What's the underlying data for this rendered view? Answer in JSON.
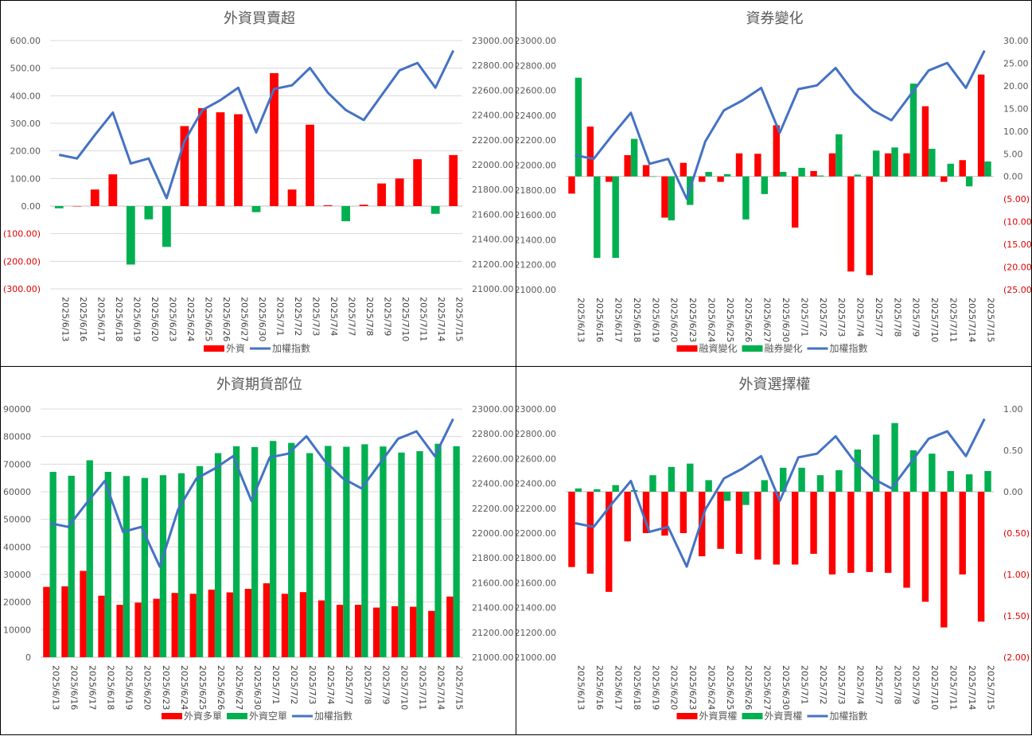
{
  "dates": [
    "2025/6/13",
    "2025/6/16",
    "2025/6/17",
    "2025/6/18",
    "2025/6/19",
    "2025/6/20",
    "2025/6/23",
    "2025/6/24",
    "2025/6/25",
    "2025/6/26",
    "2025/6/27",
    "2025/6/30",
    "2025/7/1",
    "2025/7/2",
    "2025/7/3",
    "2025/7/4",
    "2025/7/7",
    "2025/7/8",
    "2025/7/9",
    "2025/7/10",
    "2025/7/11",
    "2025/7/14",
    "2025/7/15"
  ],
  "colors": {
    "red": "#ff0000",
    "green": "#00b050",
    "blue": "#4472c4",
    "neg_tick": "#e00000"
  },
  "chart_data": [
    {
      "type": "bar",
      "title": "外資買賣超",
      "series": [
        {
          "name": "外資",
          "kind": "bar_pos_neg",
          "axis": "left",
          "values": [
            -8,
            0,
            60,
            115,
            -212,
            -48,
            -148,
            290,
            355,
            340,
            333,
            -22,
            482,
            60,
            295,
            3,
            -55,
            5,
            82,
            100,
            170,
            -28,
            185
          ]
        },
        {
          "name": "加權指數",
          "kind": "line",
          "axis": "right",
          "values": [
            22080,
            22050,
            22240,
            22420,
            22010,
            22050,
            21730,
            22190,
            22440,
            22520,
            22620,
            22260,
            22610,
            22640,
            22780,
            22580,
            22440,
            22360,
            22560,
            22760,
            22820,
            22620,
            22920
          ]
        }
      ],
      "y_left": {
        "min": -300,
        "max": 600,
        "step": 100,
        "ticks": [
          "(300.00)",
          "(200.00)",
          "(100.00)",
          "0.00",
          "100.00",
          "200.00",
          "300.00",
          "400.00",
          "500.00",
          "600.00"
        ]
      },
      "y_right": {
        "min": 21000,
        "max": 23000,
        "step": 200,
        "ticks": [
          "21000.00",
          "21200.00",
          "21400.00",
          "21600.00",
          "21800.00",
          "22000.00",
          "22200.00",
          "22400.00",
          "22600.00",
          "22800.00",
          "23000.00"
        ]
      },
      "grid": true,
      "legend": "bottom"
    },
    {
      "type": "bar",
      "title": "資券變化",
      "series": [
        {
          "name": "融資變化",
          "kind": "bar",
          "axis": "right",
          "values": [
            -3.8,
            11,
            -1.2,
            4.7,
            2.5,
            -9.1,
            3,
            -1.2,
            -1.2,
            5.1,
            5,
            11.3,
            -11.3,
            1.2,
            5.1,
            -21,
            -21.8,
            5.1,
            5.1,
            15.5,
            -1.2,
            3.6,
            22.5
          ]
        },
        {
          "name": "融券變化",
          "kind": "bar",
          "axis": "right",
          "values": [
            21.8,
            -18,
            -18,
            8.3,
            0,
            -9.7,
            -6.3,
            1,
            0.5,
            -9.5,
            -3.9,
            1,
            1.9,
            0.2,
            9.3,
            0.4,
            5.7,
            6.4,
            20.5,
            6.1,
            2.8,
            -2.2,
            3.3
          ]
        },
        {
          "name": "加權指數",
          "kind": "line",
          "axis": "left",
          "values": [
            22080,
            22050,
            22240,
            22420,
            22010,
            22050,
            21730,
            22190,
            22440,
            22520,
            22620,
            22260,
            22610,
            22640,
            22780,
            22580,
            22440,
            22360,
            22560,
            22760,
            22820,
            22620,
            22920
          ]
        }
      ],
      "y_left": {
        "min": 21000,
        "max": 23000,
        "step": 200,
        "ticks": [
          "21000.00",
          "21200.00",
          "21400.00",
          "21600.00",
          "21800.00",
          "22000.00",
          "22200.00",
          "22400.00",
          "22600.00",
          "22800.00",
          "23000.00"
        ]
      },
      "y_right": {
        "min": -25,
        "max": 30,
        "step": 5,
        "ticks": [
          "(25.00)",
          "(20.00)",
          "(15.00)",
          "(10.00)",
          "(5.00)",
          "0.00",
          "5.00",
          "10.00",
          "15.00",
          "20.00",
          "25.00",
          "30.00"
        ]
      },
      "grid": false,
      "legend": "bottom"
    },
    {
      "type": "bar",
      "title": "外資期貨部位",
      "series": [
        {
          "name": "外資多單",
          "kind": "bar",
          "axis": "left",
          "values": [
            25500,
            25700,
            31300,
            22300,
            19000,
            19800,
            21200,
            23300,
            23000,
            24500,
            23500,
            24800,
            26800,
            23000,
            23600,
            20600,
            19000,
            19000,
            18000,
            18500,
            18300,
            16800,
            22000
          ]
        },
        {
          "name": "外資空單",
          "kind": "bar",
          "axis": "left",
          "values": [
            67200,
            65800,
            71400,
            67200,
            65700,
            65000,
            66000,
            66700,
            69300,
            74000,
            76500,
            76200,
            78400,
            77700,
            74000,
            76600,
            76300,
            77200,
            76400,
            74200,
            74700,
            77400,
            76500
          ]
        },
        {
          "name": "加權指數",
          "kind": "line",
          "axis": "right",
          "values": [
            22080,
            22050,
            22240,
            22420,
            22010,
            22050,
            21730,
            22190,
            22440,
            22520,
            22620,
            22260,
            22610,
            22640,
            22780,
            22580,
            22440,
            22360,
            22560,
            22760,
            22820,
            22620,
            22920
          ]
        }
      ],
      "y_left": {
        "min": 0,
        "max": 90000,
        "step": 10000,
        "ticks": [
          "0",
          "10000",
          "20000",
          "30000",
          "40000",
          "50000",
          "60000",
          "70000",
          "80000",
          "90000"
        ]
      },
      "y_right": {
        "min": 21000,
        "max": 23000,
        "step": 200,
        "ticks": [
          "21000.00",
          "21200.00",
          "21400.00",
          "21600.00",
          "21800.00",
          "22000.00",
          "22200.00",
          "22400.00",
          "22600.00",
          "22800.00",
          "23000.00"
        ]
      },
      "grid": true,
      "legend": "bottom"
    },
    {
      "type": "bar",
      "title": "外資選擇權",
      "series": [
        {
          "name": "外資買權",
          "kind": "bar",
          "axis": "right",
          "values": [
            -0.91,
            -0.99,
            -1.21,
            -0.6,
            -0.5,
            -0.53,
            -0.5,
            -0.78,
            -0.69,
            -0.75,
            -0.82,
            -0.88,
            -0.88,
            -0.75,
            -1.0,
            -0.98,
            -0.97,
            -0.98,
            -1.16,
            -1.33,
            -1.64,
            -1.0,
            -1.57
          ]
        },
        {
          "name": "外資賣權",
          "kind": "bar",
          "axis": "right",
          "values": [
            0.04,
            0.03,
            0.08,
            0.02,
            0.2,
            0.3,
            0.34,
            0.14,
            -0.11,
            -0.16,
            0.14,
            0.29,
            0.29,
            0.2,
            0.26,
            0.51,
            0.69,
            0.83,
            0.5,
            0.46,
            0.25,
            0.21,
            0.25
          ]
        },
        {
          "name": "加權指數",
          "kind": "line",
          "axis": "left",
          "values": [
            22080,
            22050,
            22240,
            22420,
            22010,
            22050,
            21730,
            22190,
            22440,
            22520,
            22620,
            22260,
            22610,
            22640,
            22780,
            22580,
            22440,
            22360,
            22560,
            22760,
            22820,
            22620,
            22920
          ]
        }
      ],
      "y_left": {
        "min": 21000,
        "max": 23000,
        "step": 200,
        "ticks": [
          "21000.00",
          "21200.00",
          "21400.00",
          "21600.00",
          "21800.00",
          "22000.00",
          "22200.00",
          "22400.00",
          "22600.00",
          "22800.00",
          "23000.00"
        ]
      },
      "y_right": {
        "min": -2,
        "max": 1,
        "step": 0.5,
        "ticks": [
          "(2.00)",
          "(1.50)",
          "(1.00)",
          "(0.50)",
          "0.00",
          "0.50",
          "1.00"
        ]
      },
      "grid": false,
      "legend": "bottom"
    }
  ]
}
